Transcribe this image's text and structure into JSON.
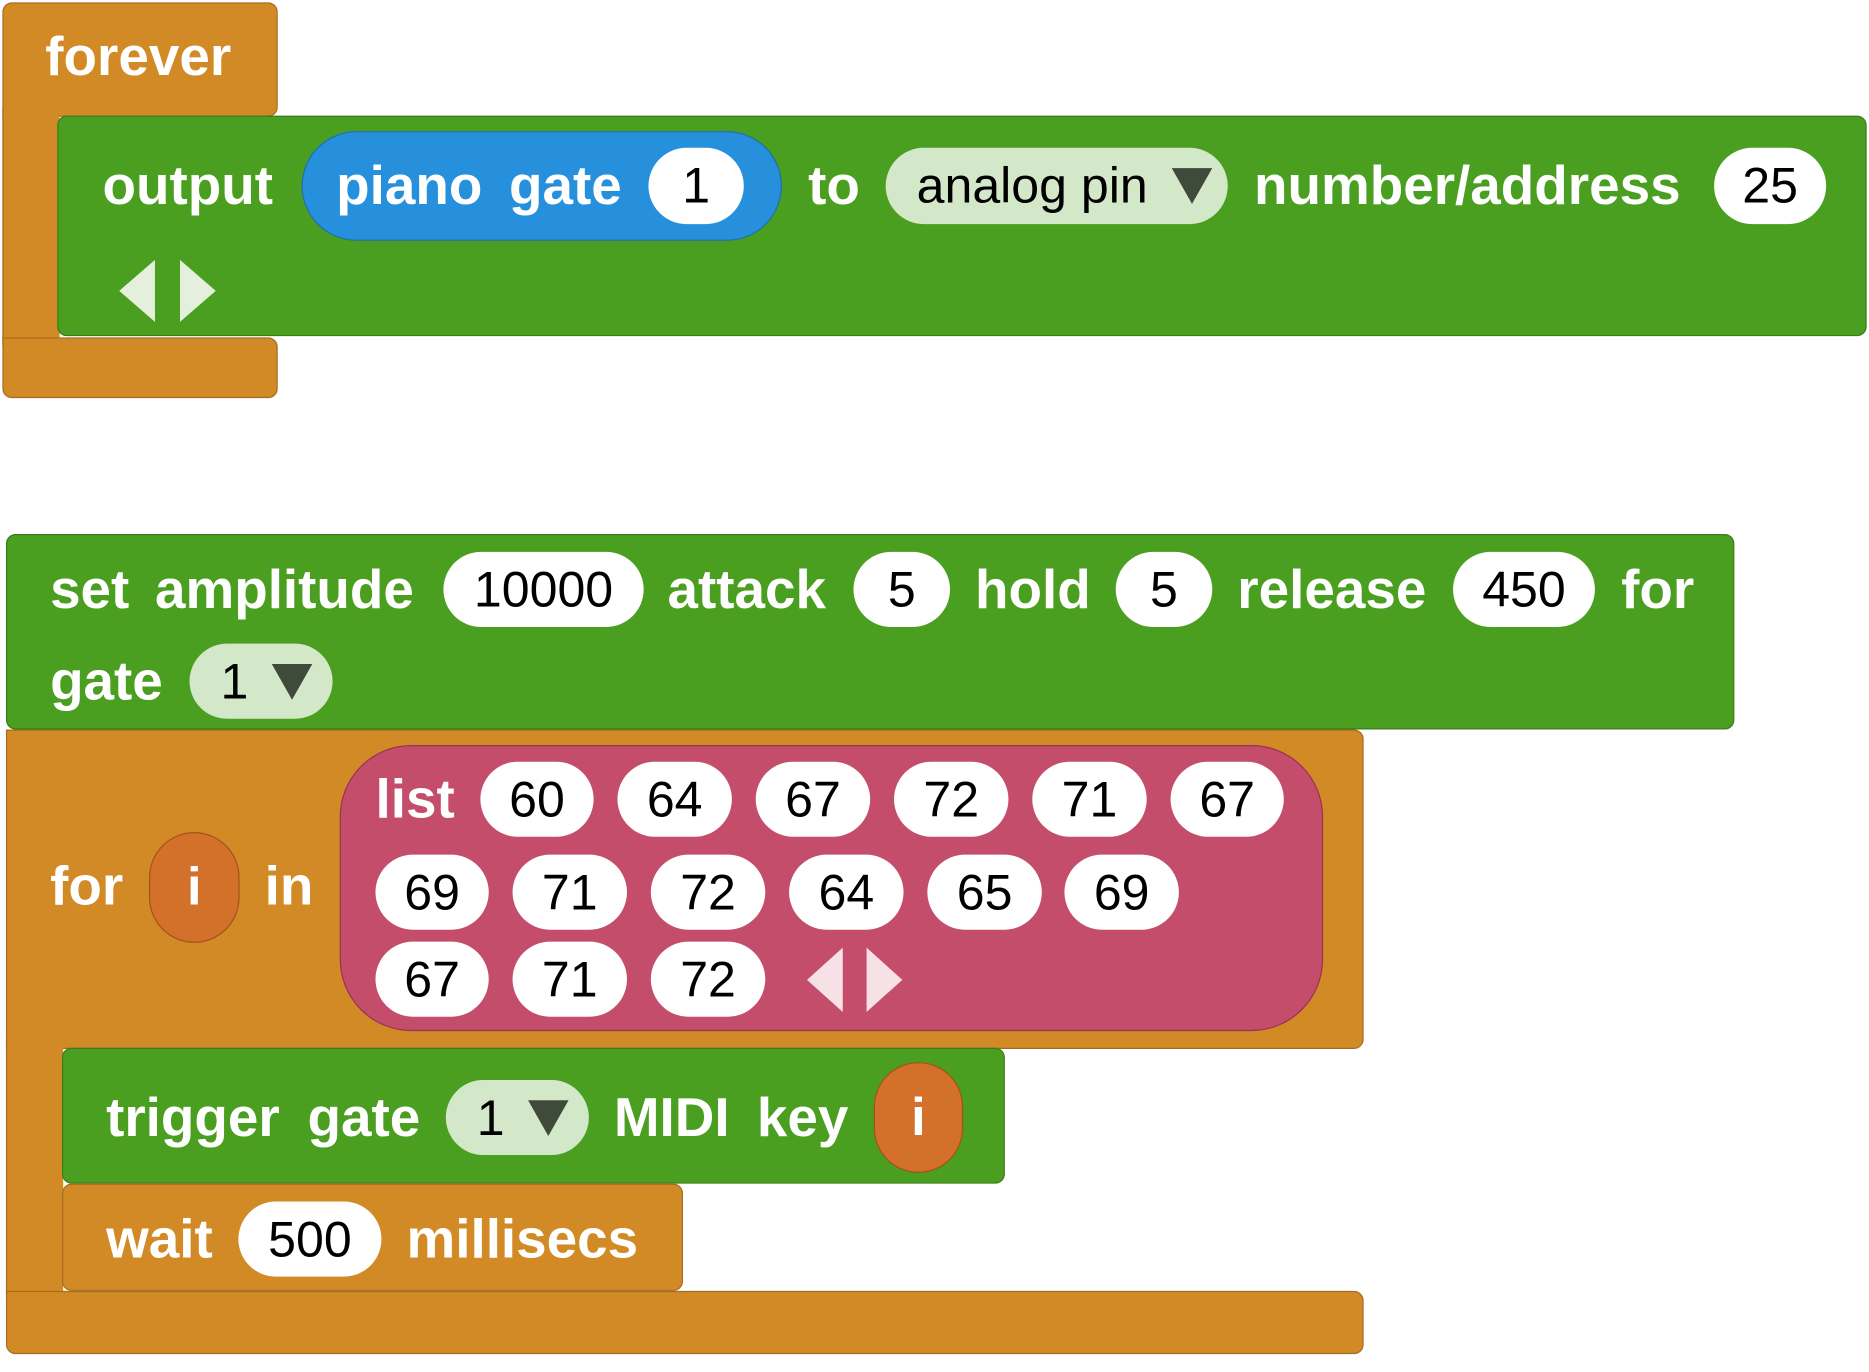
{
  "forever": {
    "label": "forever"
  },
  "output": {
    "label": "output",
    "piano": {
      "word1": "piano",
      "word2": "gate",
      "gate_value": "1"
    },
    "to_label": "to",
    "pin_type": "analog pin",
    "address_label": "number/address",
    "address_value": "25"
  },
  "envelope": {
    "set_label": "set",
    "amplitude_label": "amplitude",
    "amplitude": "10000",
    "attack_label": "attack",
    "attack": "5",
    "hold_label": "hold",
    "hold": "5",
    "release_label": "release",
    "release": "450",
    "for_label": "for",
    "gate_label": "gate",
    "gate": "1"
  },
  "for_loop": {
    "for_label": "for",
    "var": "i",
    "in_label": "in",
    "list_label": "list",
    "list": [
      "60",
      "64",
      "67",
      "72",
      "71",
      "67",
      "69",
      "71",
      "72",
      "64",
      "65",
      "69",
      "67",
      "71",
      "72"
    ]
  },
  "trigger": {
    "word1": "trigger",
    "word2": "gate",
    "gate": "1",
    "midi": "MIDI",
    "key": "key",
    "var": "i"
  },
  "wait": {
    "label": "wait",
    "value": "500",
    "unit": "millisecs"
  },
  "colors": {
    "control": "#D18A26",
    "output": "#4A9E20",
    "piano": "#2690DD",
    "list": "#C44D6B",
    "variable": "#D3702A"
  }
}
